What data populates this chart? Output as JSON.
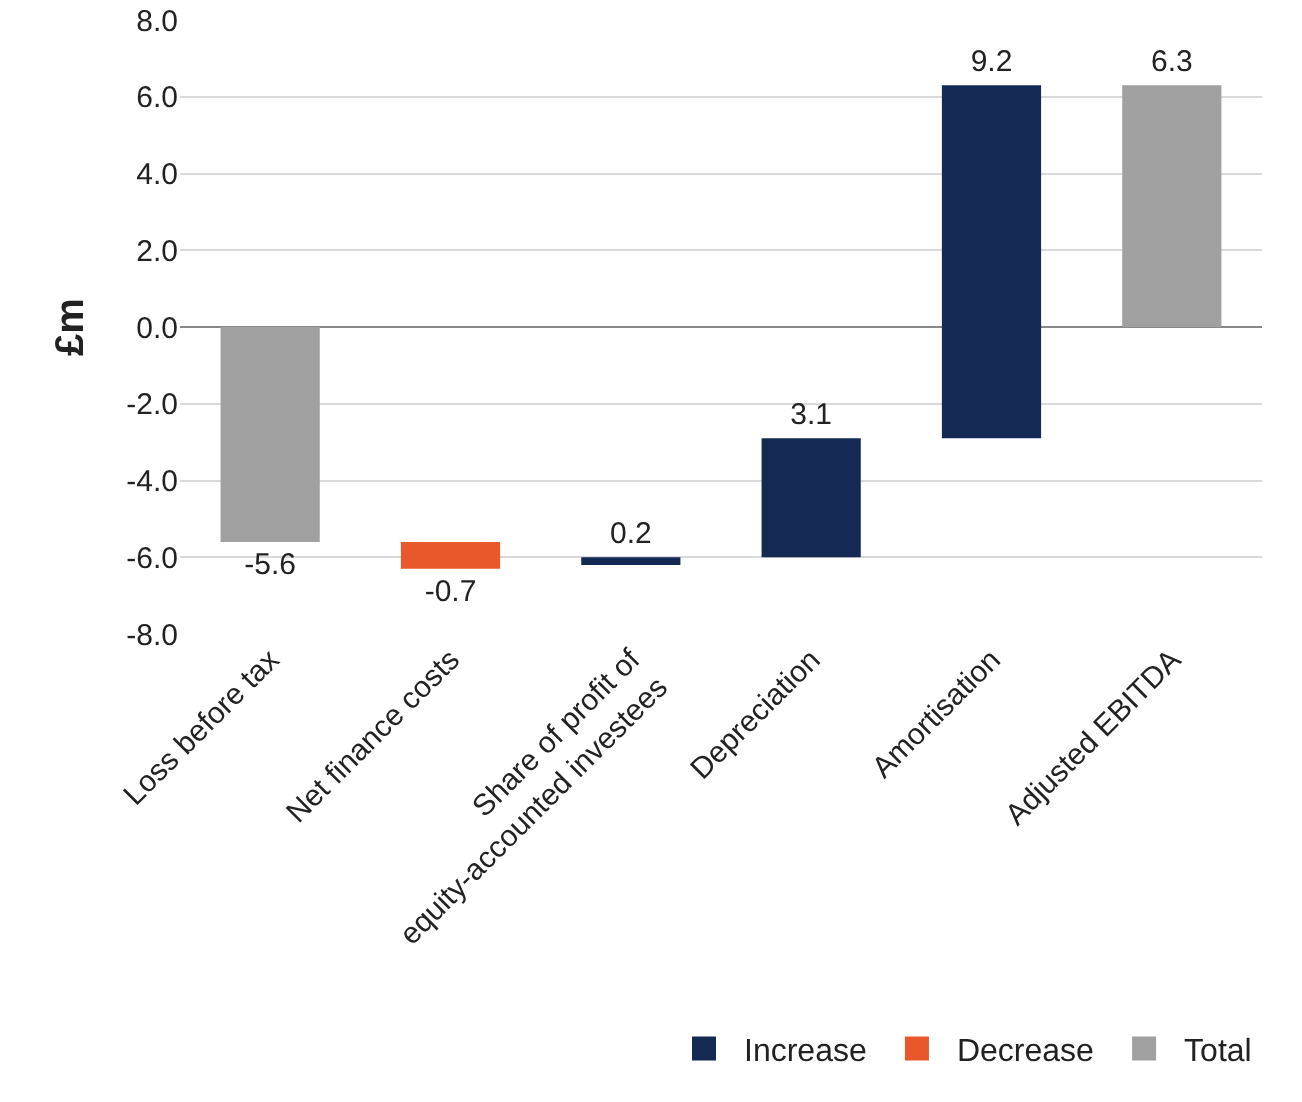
{
  "chart_data": {
    "type": "bar",
    "categories": [
      "Loss before tax",
      "Net finance costs",
      "Share of profit of\nequity-accounted investees",
      "Depreciation",
      "Amortisation",
      "Adjusted EBITDA"
    ],
    "series": [
      {
        "name": "Increase",
        "color": "#142a55",
        "values": [
          null,
          null,
          0.2,
          3.1,
          9.2,
          null
        ],
        "base": [
          null,
          null,
          -6.2,
          -6.0,
          -2.9,
          null
        ]
      },
      {
        "name": "Decrease",
        "color": "#e8582a",
        "values": [
          null,
          -0.7,
          null,
          null,
          null,
          null
        ],
        "base": [
          null,
          -5.6,
          null,
          null,
          null,
          null
        ]
      },
      {
        "name": "Total",
        "color": "#a0a0a0",
        "values": [
          -5.6,
          null,
          null,
          null,
          null,
          6.3
        ],
        "base": [
          0,
          null,
          null,
          null,
          null,
          0
        ]
      }
    ],
    "ylabel": "£m",
    "ylim": [
      -8,
      8
    ],
    "yticks": [
      {
        "value": -8,
        "label": "-8.0"
      },
      {
        "value": -6,
        "label": "-6.0"
      },
      {
        "value": -4,
        "label": "-4.0"
      },
      {
        "value": -2,
        "label": "-2.0"
      },
      {
        "value": 0,
        "label": "0.0"
      },
      {
        "value": 2,
        "label": "2.0"
      },
      {
        "value": 4,
        "label": "4.0"
      },
      {
        "value": 6,
        "label": "6.0"
      },
      {
        "value": 8,
        "label": "8.0"
      }
    ],
    "grid": "y",
    "data_labels": true,
    "legend": "bottom right"
  }
}
